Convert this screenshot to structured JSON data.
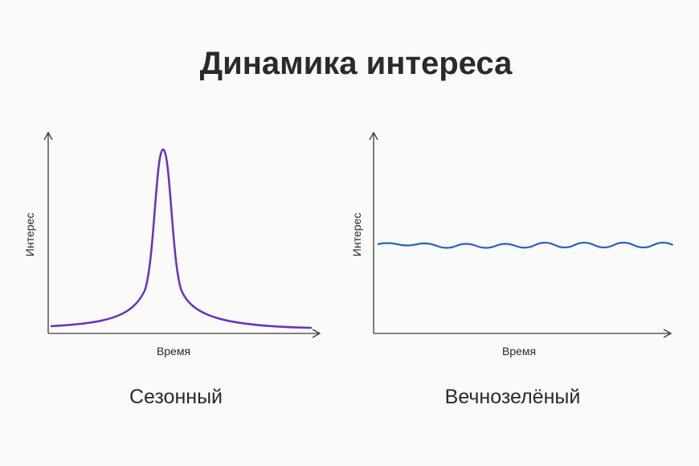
{
  "title": "Динамика интереса",
  "charts": [
    {
      "y_label": "Интерес",
      "x_label": "Время",
      "caption": "Сезонный"
    },
    {
      "y_label": "Интерес",
      "x_label": "Время",
      "caption": "Вечнозелёный"
    }
  ]
}
